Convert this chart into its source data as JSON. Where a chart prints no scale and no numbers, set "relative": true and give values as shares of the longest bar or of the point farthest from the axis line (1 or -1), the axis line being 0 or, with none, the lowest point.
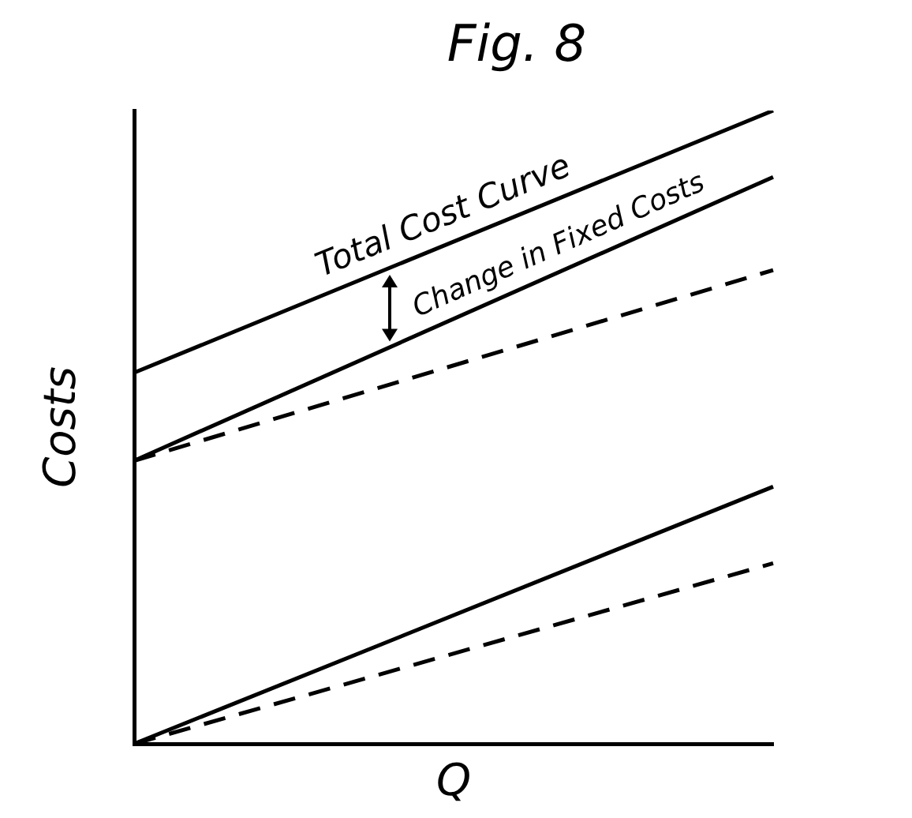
{
  "chart_data": {
    "type": "line",
    "relative": true,
    "title": "Fig. 8",
    "xlabel": "Q",
    "ylabel": "Costs",
    "categories": [
      null,
      null
    ],
    "series": [
      {
        "color": "#000000",
        "values": [
          0.586,
          1
        ],
        "line_style": "solid"
      },
      {
        "color": "#000000",
        "values": [
          0.447,
          0.895
        ],
        "line_style": "solid"
      },
      {
        "color": "#000000",
        "values": [
          0.447,
          0.748
        ],
        "line_style": "dashed"
      },
      {
        "color": "#000000",
        "values": [
          0,
          0.406
        ],
        "line_style": "solid"
      },
      {
        "color": "#000000",
        "values": [
          0,
          0.285
        ],
        "line_style": "dashed"
      }
    ],
    "annotations": [
      "Total Cost Curve",
      "Change in Fixed Costs"
    ],
    "legend": false,
    "marker": "none"
  }
}
